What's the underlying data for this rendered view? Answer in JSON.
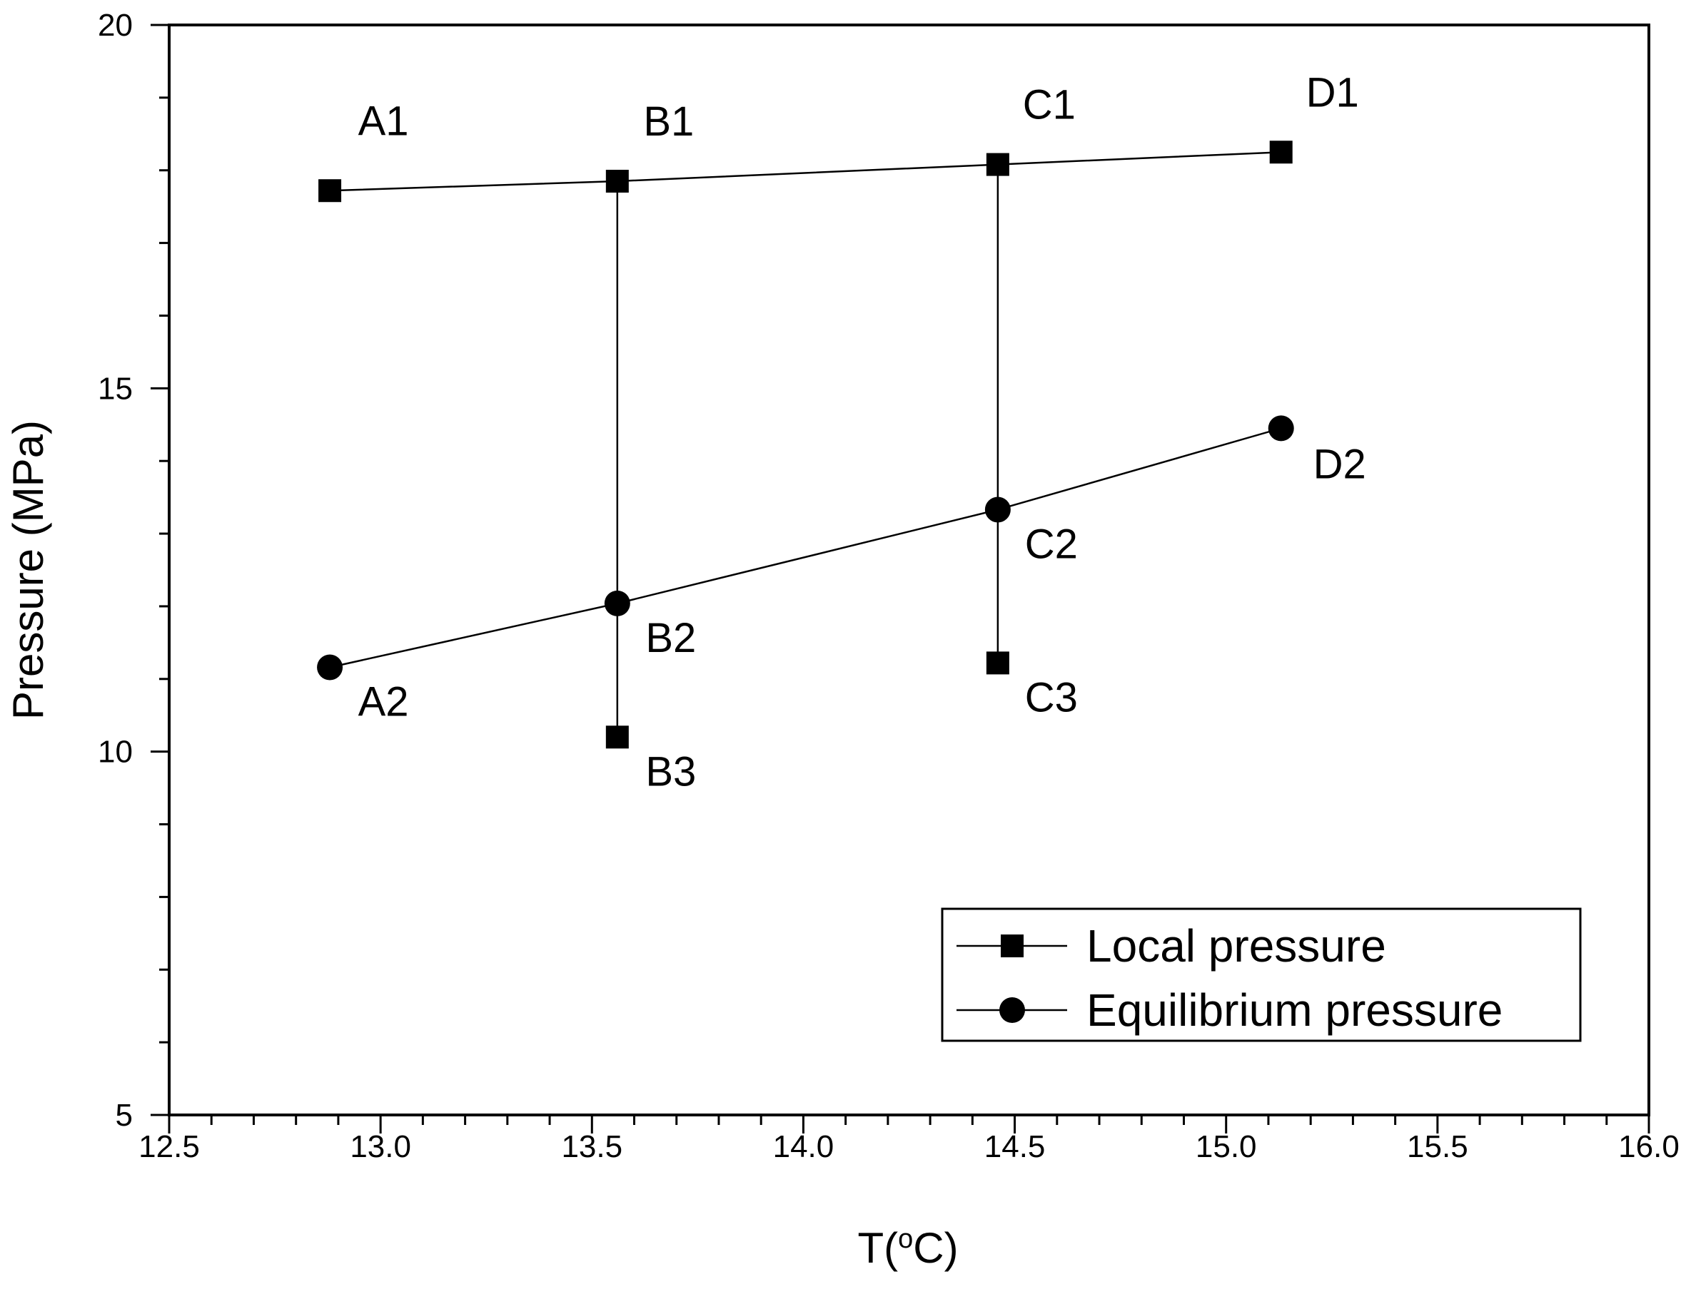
{
  "chart_data": {
    "type": "scatter",
    "title": "",
    "xlabel": {
      "prefix": "T(",
      "superscript": "o",
      "suffix": "C)"
    },
    "ylabel": "Pressure (MPa)",
    "xlim": [
      12.5,
      16.0
    ],
    "ylim": [
      5,
      20
    ],
    "x_ticks": [
      "12.5",
      "13.0",
      "13.5",
      "14.0",
      "14.5",
      "15.0",
      "15.5",
      "16.0"
    ],
    "y_ticks": [
      "5",
      "10",
      "15",
      "20"
    ],
    "grid": false,
    "legend_position": "bottom-right",
    "series": [
      {
        "name": "Local pressure",
        "marker": "square",
        "connected": true,
        "points": [
          {
            "label": "A1",
            "x": 12.88,
            "y": 17.72
          },
          {
            "label": "B1",
            "x": 13.56,
            "y": 17.85
          },
          {
            "label": "C1",
            "x": 14.46,
            "y": 18.08
          },
          {
            "label": "D1",
            "x": 15.13,
            "y": 18.25
          }
        ]
      },
      {
        "name": "Equilibrium pressure",
        "marker": "circle",
        "connected": true,
        "points": [
          {
            "label": "A2",
            "x": 12.88,
            "y": 11.16
          },
          {
            "label": "B2",
            "x": 13.56,
            "y": 12.04
          },
          {
            "label": "C2",
            "x": 14.46,
            "y": 13.33
          },
          {
            "label": "D2",
            "x": 15.13,
            "y": 14.45
          }
        ]
      },
      {
        "name": "",
        "marker": "square",
        "connected": false,
        "points": [
          {
            "label": "B3",
            "x": 13.56,
            "y": 10.2
          },
          {
            "label": "C3",
            "x": 14.46,
            "y": 11.22
          }
        ]
      }
    ],
    "drop_lines": [
      {
        "x": 13.56,
        "y_top": 17.85,
        "y_bottom": 10.2
      },
      {
        "x": 14.46,
        "y_top": 18.08,
        "y_bottom": 11.22
      }
    ]
  }
}
